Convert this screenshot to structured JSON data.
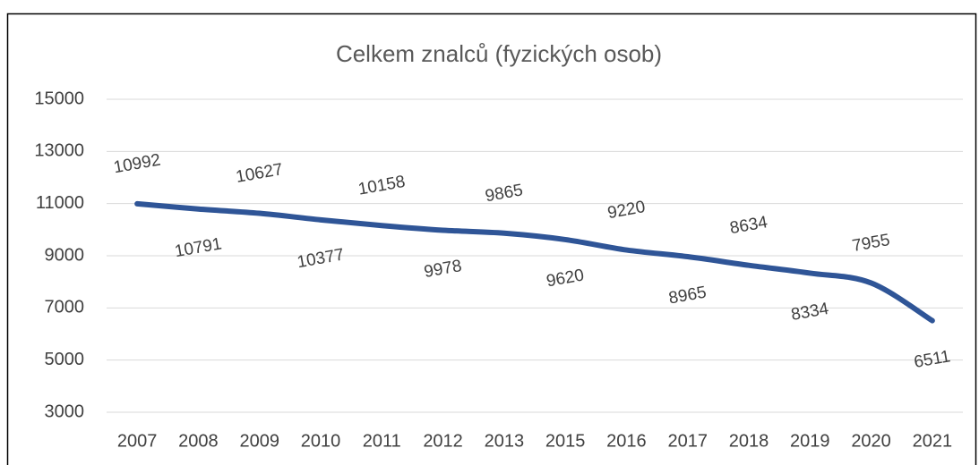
{
  "chart_data": {
    "type": "line",
    "title": "Celkem znalců (fyzických osob)",
    "categories": [
      "2007",
      "2008",
      "2009",
      "2010",
      "2011",
      "2012",
      "2013",
      "2015",
      "2016",
      "2017",
      "2018",
      "2019",
      "2020",
      "2021"
    ],
    "series": [
      {
        "name": "Celkem znalců",
        "color": "#2f5597",
        "values": [
          10992,
          10791,
          10627,
          10377,
          10158,
          9978,
          9865,
          9620,
          9220,
          8965,
          8634,
          8334,
          7955,
          6511
        ]
      }
    ],
    "ylim": [
      3000,
      15000
    ],
    "yticks": [
      3000,
      5000,
      7000,
      9000,
      11000,
      13000,
      15000
    ],
    "grid": true
  }
}
